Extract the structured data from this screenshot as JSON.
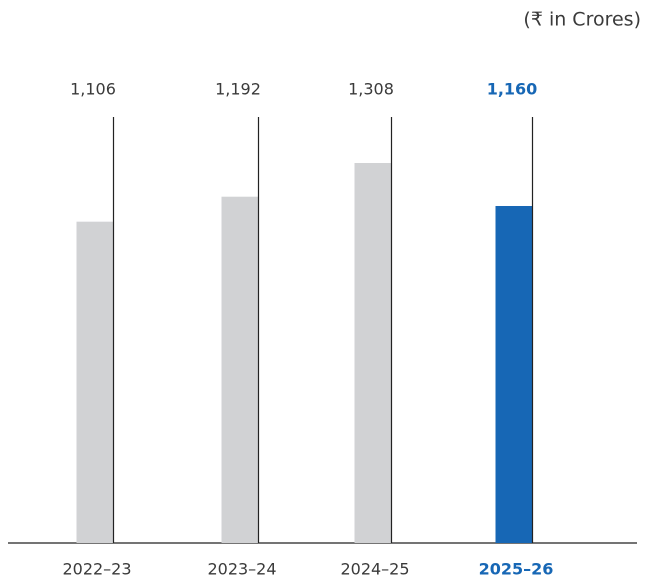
{
  "chart_data": {
    "type": "bar",
    "unit_label": "(₹ in Crores)",
    "categories": [
      "2022–23",
      "2023–24",
      "2024–25",
      "2025–26"
    ],
    "values": [
      1106,
      1192,
      1308,
      1160
    ],
    "value_labels": [
      "1,106",
      "1,192",
      "1,308",
      "1,160"
    ],
    "colors": [
      "#d1d2d4",
      "#d1d2d4",
      "#d1d2d4",
      "#1767b5"
    ]
  }
}
